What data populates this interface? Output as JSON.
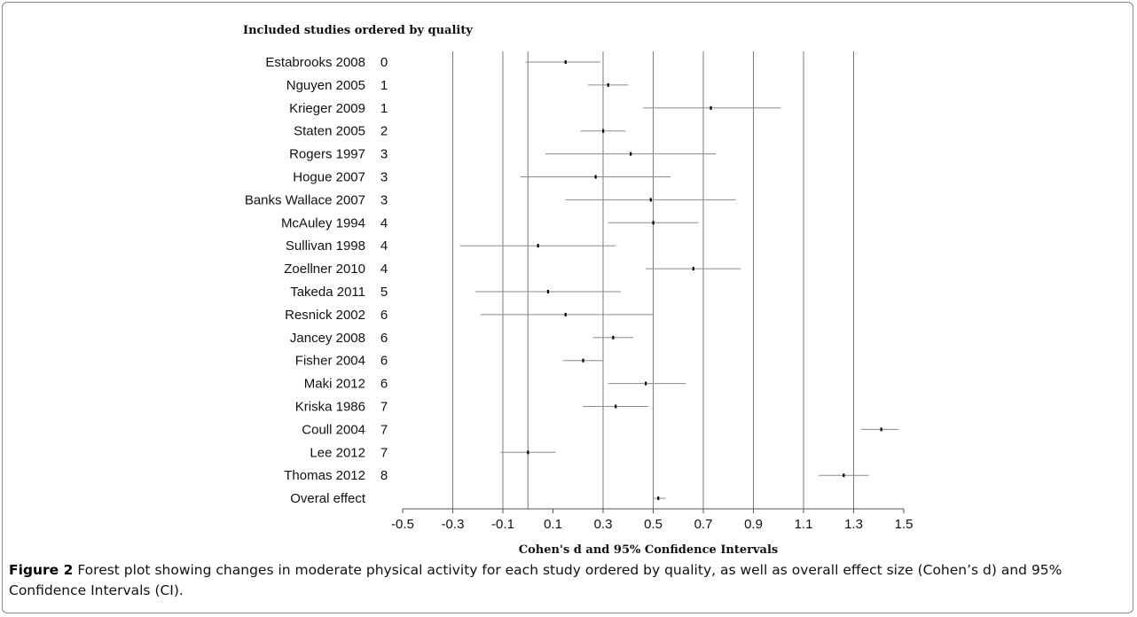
{
  "figure": {
    "label": "Figure 2",
    "caption": "Forest plot showing changes in moderate physical activity for each study ordered by quality, as well as overall effect size (Cohen’s d) and 95% Confidence Intervals (CI)."
  },
  "chart_data": {
    "type": "forest",
    "title": "Included studies ordered by quality",
    "xlabel": "Cohen's d and 95% Confidence Intervals",
    "xlim": [
      -0.5,
      1.5
    ],
    "xticks": [
      "-0.5",
      "-0.3",
      "-0.1",
      "0.1",
      "0.3",
      "0.5",
      "0.7",
      "0.9",
      "1.1",
      "1.3",
      "1.5"
    ],
    "gridlines": [
      -0.3,
      -0.1,
      0.0,
      0.3,
      0.5,
      0.7,
      0.9,
      1.1,
      1.3
    ],
    "studies": [
      {
        "name": "Estabrooks 2008",
        "quality": "0",
        "d": 0.15,
        "lo": -0.01,
        "hi": 0.29
      },
      {
        "name": "Nguyen 2005",
        "quality": "1",
        "d": 0.32,
        "lo": 0.24,
        "hi": 0.4
      },
      {
        "name": "Krieger 2009",
        "quality": "1",
        "d": 0.73,
        "lo": 0.46,
        "hi": 1.01
      },
      {
        "name": "Staten 2005",
        "quality": "2",
        "d": 0.3,
        "lo": 0.21,
        "hi": 0.39
      },
      {
        "name": "Rogers 1997",
        "quality": "3",
        "d": 0.41,
        "lo": 0.07,
        "hi": 0.75
      },
      {
        "name": "Hogue 2007",
        "quality": "3",
        "d": 0.27,
        "lo": -0.03,
        "hi": 0.57
      },
      {
        "name": "Banks Wallace 2007",
        "quality": "3",
        "d": 0.49,
        "lo": 0.15,
        "hi": 0.83
      },
      {
        "name": "McAuley 1994",
        "quality": "4",
        "d": 0.5,
        "lo": 0.32,
        "hi": 0.68
      },
      {
        "name": "Sullivan 1998",
        "quality": "4",
        "d": 0.04,
        "lo": -0.27,
        "hi": 0.35
      },
      {
        "name": "Zoellner 2010",
        "quality": "4",
        "d": 0.66,
        "lo": 0.47,
        "hi": 0.85
      },
      {
        "name": "Takeda 2011",
        "quality": "5",
        "d": 0.08,
        "lo": -0.21,
        "hi": 0.37
      },
      {
        "name": "Resnick 2002",
        "quality": "6",
        "d": 0.15,
        "lo": -0.19,
        "hi": 0.5
      },
      {
        "name": "Jancey 2008",
        "quality": "6",
        "d": 0.34,
        "lo": 0.26,
        "hi": 0.42
      },
      {
        "name": "Fisher 2004",
        "quality": "6",
        "d": 0.22,
        "lo": 0.14,
        "hi": 0.3
      },
      {
        "name": "Maki 2012",
        "quality": "6",
        "d": 0.47,
        "lo": 0.32,
        "hi": 0.63
      },
      {
        "name": "Kriska 1986",
        "quality": "7",
        "d": 0.35,
        "lo": 0.22,
        "hi": 0.48
      },
      {
        "name": "Coull 2004",
        "quality": "7",
        "d": 1.41,
        "lo": 1.33,
        "hi": 1.48
      },
      {
        "name": "Lee 2012",
        "quality": "7",
        "d": 0.0,
        "lo": -0.11,
        "hi": 0.11
      },
      {
        "name": "Thomas 2012",
        "quality": "8",
        "d": 1.26,
        "lo": 1.16,
        "hi": 1.36
      },
      {
        "name": "Overal effect",
        "quality": "",
        "d": 0.52,
        "lo": 0.5,
        "hi": 0.55
      }
    ]
  }
}
